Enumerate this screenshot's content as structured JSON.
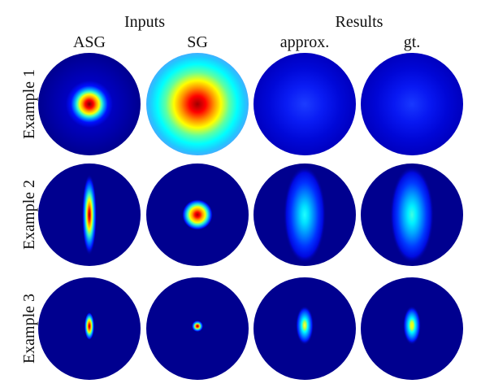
{
  "figure": {
    "groups": [
      {
        "title": "Inputs"
      },
      {
        "title": "Results"
      }
    ],
    "columns": [
      {
        "title": "ASG"
      },
      {
        "title": "SG"
      },
      {
        "title": "approx."
      },
      {
        "title": "gt."
      }
    ],
    "rows": [
      {
        "label": "Example 1"
      },
      {
        "label": "Example 2"
      },
      {
        "label": "Example 3"
      }
    ],
    "colormap": [
      "#00008f",
      "#0000ff",
      "#0080ff",
      "#00ffff",
      "#80ff80",
      "#ffff00",
      "#ff8000",
      "#ff0000",
      "#800000"
    ],
    "background_color": "#00008f"
  }
}
